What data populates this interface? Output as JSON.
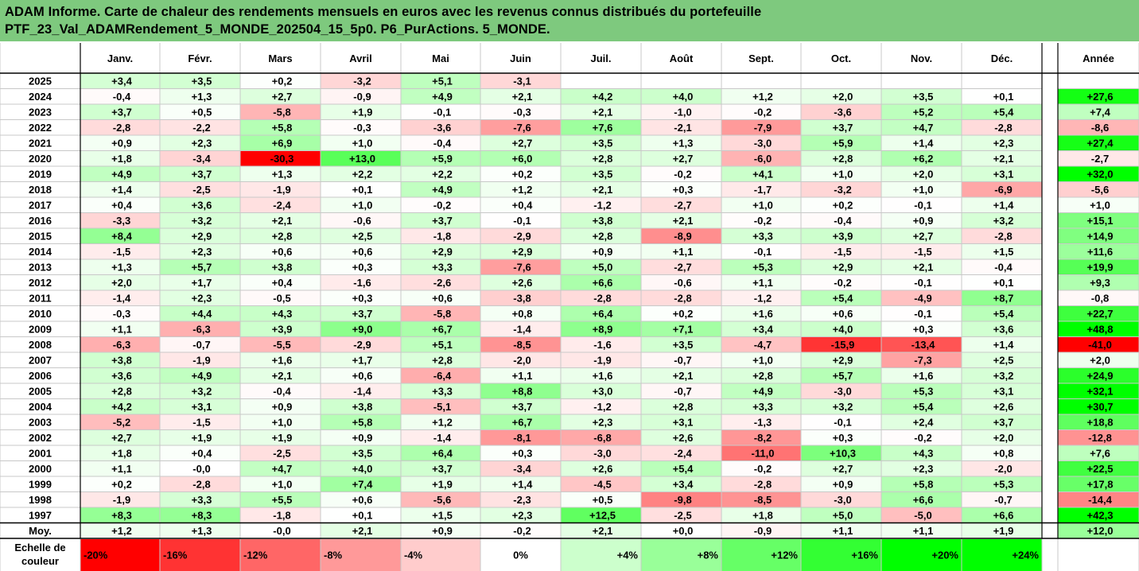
{
  "title": {
    "line1": "ADAM Informe. Carte de chaleur des rendements mensuels en euros avec les revenus connus distribués du portefeuille",
    "line2": "PTF_23_Val_ADAMRendement_5_MONDE_202504_15_5p0. P6_PurActions. 5_MONDE."
  },
  "colors": {
    "title_background": "#7ec97e",
    "negative_max": "#ff0000",
    "neutral": "#ffffff",
    "positive_max": "#00ff00"
  },
  "chart_data": {
    "type": "heatmap",
    "months": [
      "Janv.",
      "Févr.",
      "Mars",
      "Avril",
      "Mai",
      "Juin",
      "Juil.",
      "Août",
      "Sept.",
      "Oct.",
      "Nov.",
      "Déc."
    ],
    "year_header": "Année",
    "rows": [
      {
        "label": "2025",
        "values": [
          "+3,4",
          "+3,5",
          "+0,2",
          "-3,2",
          "+5,1",
          "-3,1",
          "",
          "",
          "",
          "",
          "",
          ""
        ],
        "year": ""
      },
      {
        "label": "2024",
        "values": [
          "-0,4",
          "+1,3",
          "+2,7",
          "-0,9",
          "+4,9",
          "+2,1",
          "+4,2",
          "+4,0",
          "+1,2",
          "+2,0",
          "+3,5",
          "+0,1"
        ],
        "year": "+27,6"
      },
      {
        "label": "2023",
        "values": [
          "+3,7",
          "+0,5",
          "-5,8",
          "+1,9",
          "-0,1",
          "-0,3",
          "+2,1",
          "-1,0",
          "-0,2",
          "-3,6",
          "+5,2",
          "+5,4"
        ],
        "year": "+7,4"
      },
      {
        "label": "2022",
        "values": [
          "-2,8",
          "-2,2",
          "+5,8",
          "-0,3",
          "-3,6",
          "-7,6",
          "+7,6",
          "-2,1",
          "-7,9",
          "+3,7",
          "+4,7",
          "-2,8"
        ],
        "year": "-8,6"
      },
      {
        "label": "2021",
        "values": [
          "+0,9",
          "+2,3",
          "+6,9",
          "+1,0",
          "-0,4",
          "+2,7",
          "+3,5",
          "+1,3",
          "-3,0",
          "+5,9",
          "+1,4",
          "+2,3"
        ],
        "year": "+27,4"
      },
      {
        "label": "2020",
        "values": [
          "+1,8",
          "-3,4",
          "-30,3",
          "+13,0",
          "+5,9",
          "+6,0",
          "+2,8",
          "+2,7",
          "-6,0",
          "+2,8",
          "+6,2",
          "+2,1"
        ],
        "year": "-2,7"
      },
      {
        "label": "2019",
        "values": [
          "+4,9",
          "+3,7",
          "+1,3",
          "+2,2",
          "+2,2",
          "+0,2",
          "+3,5",
          "-0,2",
          "+4,1",
          "+1,0",
          "+2,0",
          "+3,1"
        ],
        "year": "+32,0"
      },
      {
        "label": "2018",
        "values": [
          "+1,4",
          "-2,5",
          "-1,9",
          "+0,1",
          "+4,9",
          "+1,2",
          "+2,1",
          "+0,3",
          "-1,7",
          "-3,2",
          "+1,0",
          "-6,9"
        ],
        "year": "-5,6"
      },
      {
        "label": "2017",
        "values": [
          "+0,4",
          "+3,6",
          "-2,4",
          "+1,0",
          "-0,2",
          "+0,4",
          "-1,2",
          "-2,7",
          "+1,0",
          "+0,2",
          "-0,1",
          "+1,4"
        ],
        "year": "+1,0"
      },
      {
        "label": "2016",
        "values": [
          "-3,3",
          "+3,2",
          "+2,1",
          "-0,6",
          "+3,7",
          "-0,1",
          "+3,8",
          "+2,1",
          "-0,2",
          "-0,4",
          "+0,9",
          "+3,2"
        ],
        "year": "+15,1"
      },
      {
        "label": "2015",
        "values": [
          "+8,4",
          "+2,9",
          "+2,8",
          "+2,5",
          "-1,8",
          "-2,9",
          "+2,8",
          "-8,9",
          "+3,3",
          "+3,9",
          "+2,7",
          "-2,8"
        ],
        "year": "+14,9"
      },
      {
        "label": "2014",
        "values": [
          "-1,5",
          "+2,3",
          "+0,6",
          "+0,6",
          "+2,9",
          "+2,9",
          "+0,9",
          "+1,1",
          "-0,1",
          "-1,5",
          "-1,5",
          "+1,5"
        ],
        "year": "+11,6"
      },
      {
        "label": "2013",
        "values": [
          "+1,3",
          "+5,7",
          "+3,8",
          "+0,3",
          "+3,3",
          "-7,6",
          "+5,0",
          "-2,7",
          "+5,3",
          "+2,9",
          "+2,1",
          "-0,4"
        ],
        "year": "+19,9"
      },
      {
        "label": "2012",
        "values": [
          "+2,0",
          "+1,7",
          "+0,4",
          "-1,6",
          "-2,6",
          "+2,6",
          "+6,6",
          "-0,6",
          "+1,1",
          "-0,2",
          "-0,1",
          "+0,1"
        ],
        "year": "+9,3"
      },
      {
        "label": "2011",
        "values": [
          "-1,4",
          "+2,3",
          "-0,5",
          "+0,3",
          "+0,6",
          "-3,8",
          "-2,8",
          "-2,8",
          "-1,2",
          "+5,4",
          "-4,9",
          "+8,7"
        ],
        "year": "-0,8"
      },
      {
        "label": "2010",
        "values": [
          "-0,3",
          "+4,4",
          "+4,3",
          "+3,7",
          "-5,8",
          "+0,8",
          "+6,4",
          "+0,2",
          "+1,6",
          "+0,6",
          "-0,1",
          "+5,4"
        ],
        "year": "+22,7"
      },
      {
        "label": "2009",
        "values": [
          "+1,1",
          "-6,3",
          "+3,9",
          "+9,0",
          "+6,7",
          "-1,4",
          "+8,9",
          "+7,1",
          "+3,4",
          "+4,0",
          "+0,3",
          "+3,6"
        ],
        "year": "+48,8"
      },
      {
        "label": "2008",
        "values": [
          "-6,3",
          "-0,7",
          "-5,5",
          "-2,9",
          "+5,1",
          "-8,5",
          "-1,6",
          "+3,5",
          "-4,7",
          "-15,9",
          "-13,4",
          "+1,4"
        ],
        "year": "-41,0"
      },
      {
        "label": "2007",
        "values": [
          "+3,8",
          "-1,9",
          "+1,6",
          "+1,7",
          "+2,8",
          "-2,0",
          "-1,9",
          "-0,7",
          "+1,0",
          "+2,9",
          "-7,3",
          "+2,5"
        ],
        "year": "+2,0"
      },
      {
        "label": "2006",
        "values": [
          "+3,6",
          "+4,9",
          "+2,1",
          "+0,6",
          "-6,4",
          "+1,1",
          "+1,6",
          "+2,1",
          "+2,8",
          "+5,7",
          "+1,6",
          "+3,2"
        ],
        "year": "+24,9"
      },
      {
        "label": "2005",
        "values": [
          "+2,8",
          "+3,2",
          "-0,4",
          "-1,4",
          "+3,3",
          "+8,8",
          "+3,0",
          "-0,7",
          "+4,9",
          "-3,0",
          "+5,3",
          "+3,1"
        ],
        "year": "+32,1"
      },
      {
        "label": "2004",
        "values": [
          "+4,2",
          "+3,1",
          "+0,9",
          "+3,8",
          "-5,1",
          "+3,7",
          "-1,2",
          "+2,8",
          "+3,3",
          "+3,2",
          "+5,4",
          "+2,6"
        ],
        "year": "+30,7"
      },
      {
        "label": "2003",
        "values": [
          "-5,2",
          "-1,5",
          "+1,0",
          "+5,8",
          "+1,2",
          "+6,7",
          "+2,3",
          "+3,1",
          "-1,3",
          "-0,1",
          "+2,4",
          "+3,7"
        ],
        "year": "+18,8"
      },
      {
        "label": "2002",
        "values": [
          "+2,7",
          "+1,9",
          "+1,9",
          "+0,9",
          "-1,4",
          "-8,1",
          "-6,8",
          "+2,6",
          "-8,2",
          "+0,3",
          "-0,2",
          "+2,0"
        ],
        "year": "-12,8"
      },
      {
        "label": "2001",
        "values": [
          "+1,8",
          "+0,4",
          "-2,5",
          "+3,5",
          "+6,4",
          "+0,3",
          "-3,0",
          "-2,4",
          "-11,0",
          "+10,3",
          "+4,3",
          "+0,8"
        ],
        "year": "+7,6"
      },
      {
        "label": "2000",
        "values": [
          "+1,1",
          "-0,0",
          "+4,7",
          "+4,0",
          "+3,7",
          "-3,4",
          "+2,6",
          "+5,4",
          "-0,2",
          "+2,7",
          "+2,3",
          "-2,0"
        ],
        "year": "+22,5"
      },
      {
        "label": "1999",
        "values": [
          "+0,2",
          "-2,8",
          "+1,0",
          "+7,4",
          "+1,9",
          "+1,4",
          "-4,5",
          "+3,4",
          "-2,8",
          "+0,9",
          "+5,8",
          "+5,3"
        ],
        "year": "+17,8"
      },
      {
        "label": "1998",
        "values": [
          "-1,9",
          "+3,3",
          "+5,5",
          "+0,6",
          "-5,6",
          "-2,3",
          "+0,5",
          "-9,8",
          "-8,5",
          "-3,0",
          "+6,6",
          "-0,7"
        ],
        "year": "-14,4"
      },
      {
        "label": "1997",
        "values": [
          "+8,3",
          "+8,3",
          "-1,8",
          "+0,1",
          "+1,5",
          "+2,3",
          "+12,5",
          "-2,5",
          "+1,8",
          "+5,0",
          "-5,0",
          "+6,6"
        ],
        "year": "+42,3"
      }
    ],
    "average_row": {
      "label": "Moy.",
      "values": [
        "+1,2",
        "+1,3",
        "-0,0",
        "+2,1",
        "+0,9",
        "-0,2",
        "+2,1",
        "+0,0",
        "-0,9",
        "+1,1",
        "+1,1",
        "+1,9"
      ],
      "year": "+12,0"
    },
    "scale": {
      "label_line1": "Echelle de",
      "label_line2": "couleur",
      "stops": [
        "-20%",
        "-16%",
        "-12%",
        "-8%",
        "-4%",
        "0%",
        "+4%",
        "+8%",
        "+12%",
        "+16%",
        "+20%",
        "+24%"
      ],
      "stop_values": [
        -20,
        -16,
        -12,
        -8,
        -4,
        0,
        4,
        8,
        12,
        16,
        20,
        24
      ]
    },
    "month_color_range": [
      -20,
      20
    ],
    "year_color_range": [
      -30,
      30
    ]
  }
}
